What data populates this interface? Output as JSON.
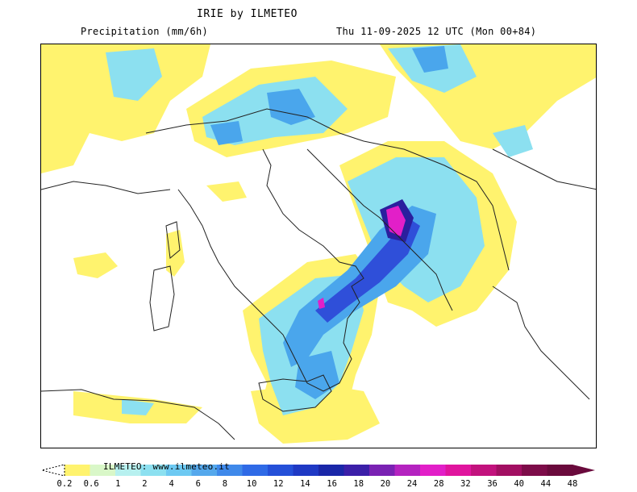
{
  "header": {
    "title": "IRIE by ILMETEO",
    "subtitle": "Precipitation (mm/6h)",
    "datetime": "Thu 11-09-2025 12 UTC (Mon 00+84)"
  },
  "legend": {
    "watermark": "ILMETEO: www.ilmeteo.it",
    "ticks": [
      "0.2",
      "0.6",
      "1",
      "2",
      "4",
      "6",
      "8",
      "10",
      "12",
      "14",
      "16",
      "18",
      "20",
      "24",
      "28",
      "32",
      "36",
      "40",
      "44",
      "48"
    ],
    "colors": [
      "#fff36e",
      "#d9f7c8",
      "#b7f0ef",
      "#8ce0f0",
      "#6dc9f2",
      "#55a8ec",
      "#3f89ea",
      "#2f6ae6",
      "#2550d8",
      "#1f39c4",
      "#1a27a8",
      "#3b1fa8",
      "#7a22b3",
      "#b423c0",
      "#e21fc8",
      "#e0159e",
      "#c2127d",
      "#a20f62",
      "#7d0c49",
      "#6a0a3c"
    ]
  },
  "map": {
    "colors": {
      "coast": "#222222",
      "light": "#fff36e",
      "cyan": "#8ce0f0",
      "blue": "#4aa6ec",
      "deep": "#2f4fd9",
      "violet": "#2a1f9e",
      "magenta": "#e21fc8"
    }
  }
}
